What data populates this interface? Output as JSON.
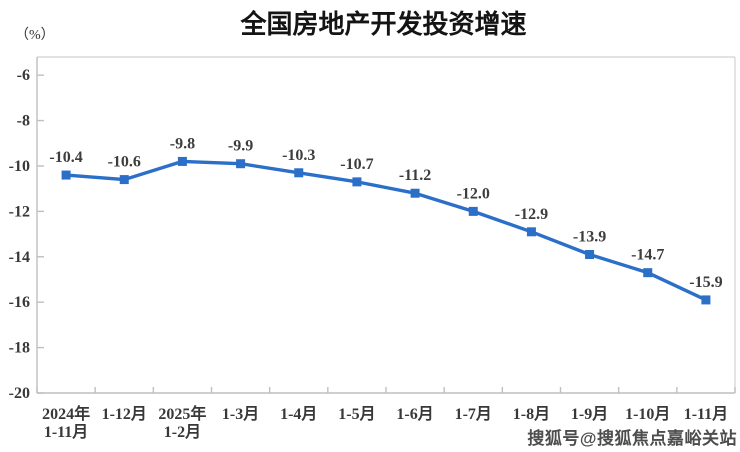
{
  "page": {
    "watermark": "搜狐号@搜狐焦点嘉峪关站"
  },
  "colors": {
    "line": "#2B6FC8",
    "marker": "#2B6FC8",
    "data_label": "#3D3D3D",
    "axis_label": "#383838",
    "axis_line": "#BFBFBF",
    "plot_border": "#D9D9D9",
    "title": "#141414",
    "background": "#FFFFFF"
  },
  "chart_data": {
    "type": "line",
    "title": "全国房地产开发投资增速",
    "ylabel": "（%）",
    "xlabel": "",
    "categories": [
      [
        "2024年",
        "1-11月"
      ],
      [
        "1-12月"
      ],
      [
        "2025年",
        "1-2月"
      ],
      [
        "1-3月"
      ],
      [
        "1-4月"
      ],
      [
        "1-5月"
      ],
      [
        "1-6月"
      ],
      [
        "1-7月"
      ],
      [
        "1-8月"
      ],
      [
        "1-9月"
      ],
      [
        "1-10月"
      ],
      [
        "1-11月"
      ]
    ],
    "series": [
      {
        "name": "全国房地产开发投资增速",
        "values": [
          -10.4,
          -10.6,
          -9.8,
          -9.9,
          -10.3,
          -10.7,
          -11.2,
          -12.0,
          -12.9,
          -13.9,
          -14.7,
          -15.9
        ],
        "data_labels": [
          "-10.4",
          "-10.6",
          "-9.8",
          "-9.9",
          "-10.3",
          "-10.7",
          "-11.2",
          "-12.0",
          "-12.9",
          "-13.9",
          "-14.7",
          "-15.9"
        ]
      }
    ],
    "ylim": [
      -20,
      -5.2
    ],
    "yticks": [
      -6,
      -8,
      -10,
      -12,
      -14,
      -16,
      -18,
      -20
    ],
    "grid": false,
    "legend": "none",
    "marker": "square"
  }
}
